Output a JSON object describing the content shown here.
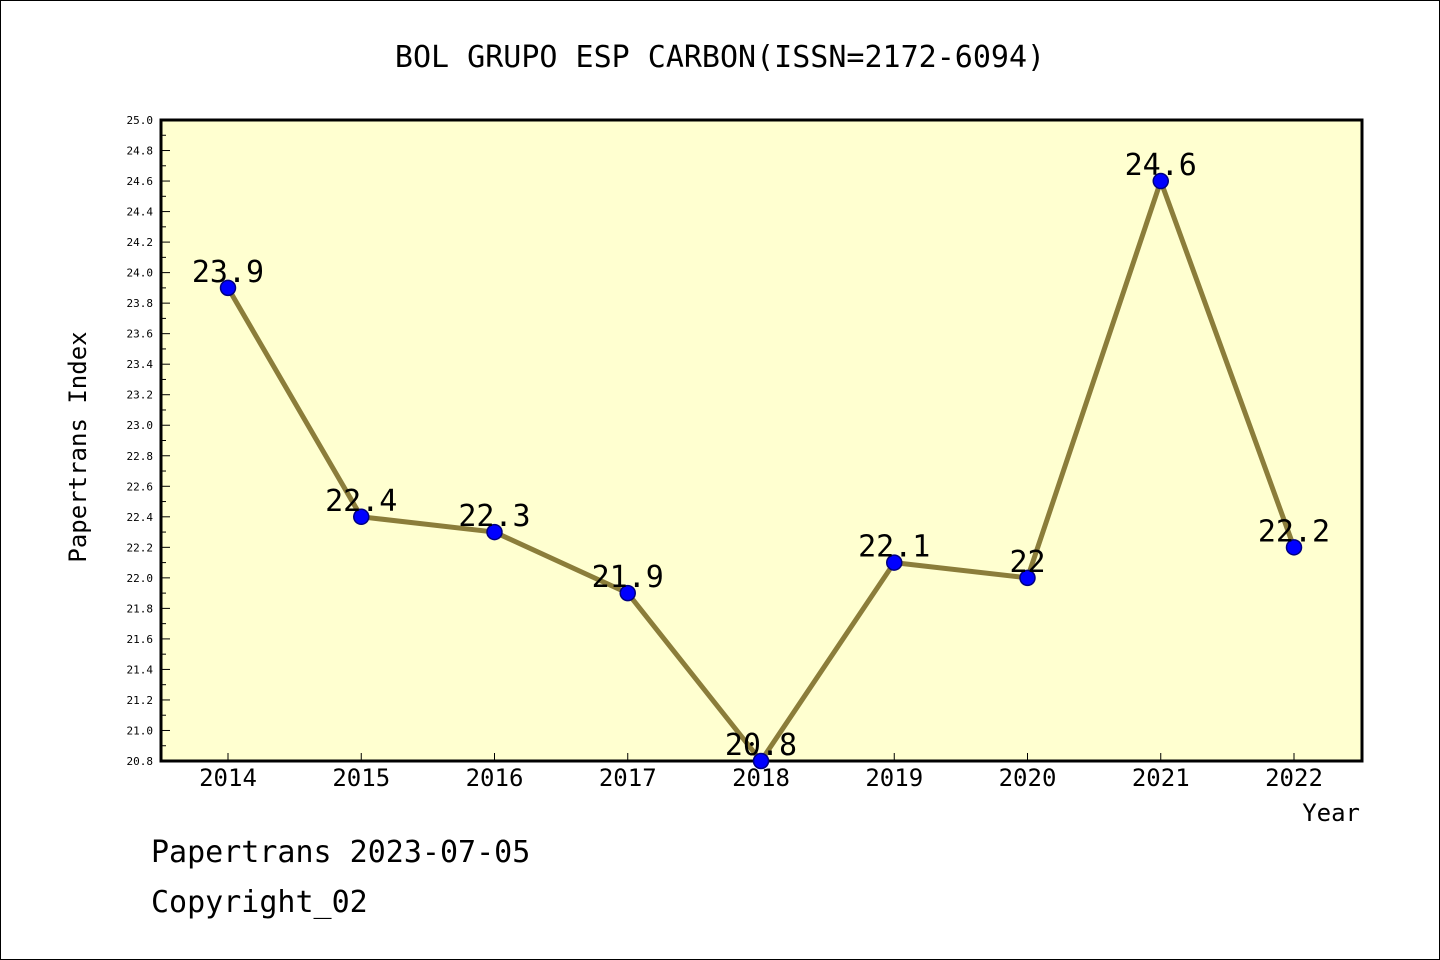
{
  "chart_data": {
    "type": "line",
    "title": "BOL GRUPO ESP CARBON(ISSN=2172-6094)",
    "xlabel": "Year",
    "ylabel": "Papertrans Index",
    "categories": [
      "2014",
      "2015",
      "2016",
      "2017",
      "2018",
      "2019",
      "2020",
      "2021",
      "2022"
    ],
    "series": [
      {
        "values": [
          23.9,
          22.4,
          22.3,
          21.9,
          20.8,
          22.1,
          22.0,
          24.6,
          22.2
        ],
        "labels": [
          "23.9",
          "22.4",
          "22.3",
          "21.9",
          "20.8",
          "22.1",
          "22",
          "24.6",
          "22.2"
        ]
      }
    ],
    "ylim": [
      20.8,
      25.0
    ],
    "ytick_step": 0.2,
    "y_minor_step": 0.1,
    "yticks": [
      "20.8",
      "21.0",
      "21.2",
      "21.4",
      "21.6",
      "21.8",
      "22.0",
      "22.2",
      "22.4",
      "22.6",
      "22.8",
      "23.0",
      "23.2",
      "23.4",
      "23.6",
      "23.8",
      "24.0",
      "24.2",
      "24.4",
      "24.6",
      "24.8",
      "25.0"
    ],
    "grid": false,
    "legend": "none",
    "colors": {
      "plot_background": "#ffffd0",
      "line": "#8b7d3a",
      "marker": "#0000ff",
      "marker_edge": "#000080",
      "axis": "#000000"
    }
  },
  "footer": {
    "line1": "Papertrans 2023-07-05",
    "line2": "Copyright_02"
  }
}
